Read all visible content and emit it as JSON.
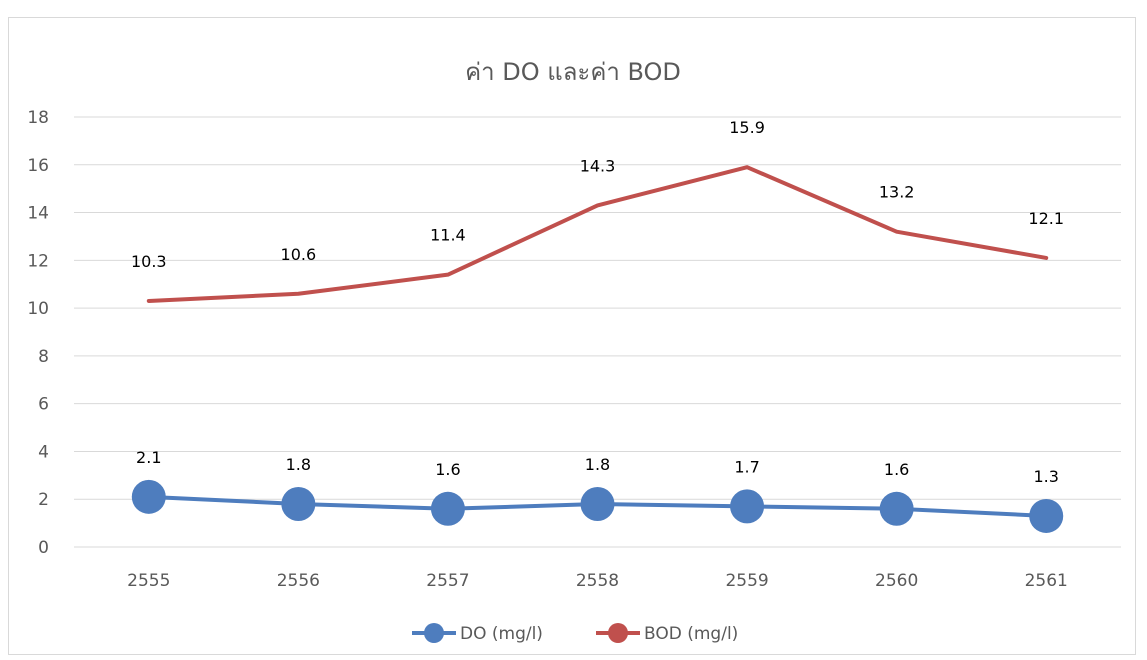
{
  "chart_data": {
    "type": "line",
    "title": "ค่า DO และค่า BOD",
    "categories": [
      "2555",
      "2556",
      "2557",
      "2558",
      "2559",
      "2560",
      "2561"
    ],
    "ylim": [
      0,
      18
    ],
    "yticks": [
      "0",
      "2",
      "4",
      "6",
      "8",
      "10",
      "12",
      "14",
      "16",
      "18"
    ],
    "grid": true,
    "legend_position": "bottom",
    "series": [
      {
        "name": "DO (mg/l)",
        "color": "#4e7dbe",
        "marker": "circle",
        "values": [
          2.1,
          1.8,
          1.6,
          1.8,
          1.7,
          1.6,
          1.3
        ],
        "labels": [
          "2.1",
          "1.8",
          "1.6",
          "1.8",
          "1.7",
          "1.6",
          "1.3"
        ]
      },
      {
        "name": "BOD (mg/l)",
        "color": "#c0504d",
        "marker": "circle",
        "values": [
          10.3,
          10.6,
          11.4,
          14.3,
          15.9,
          13.2,
          12.1
        ],
        "labels": [
          "10.3",
          "10.6",
          "11.4",
          "14.3",
          "15.9",
          "13.2",
          "12.1"
        ]
      }
    ]
  }
}
